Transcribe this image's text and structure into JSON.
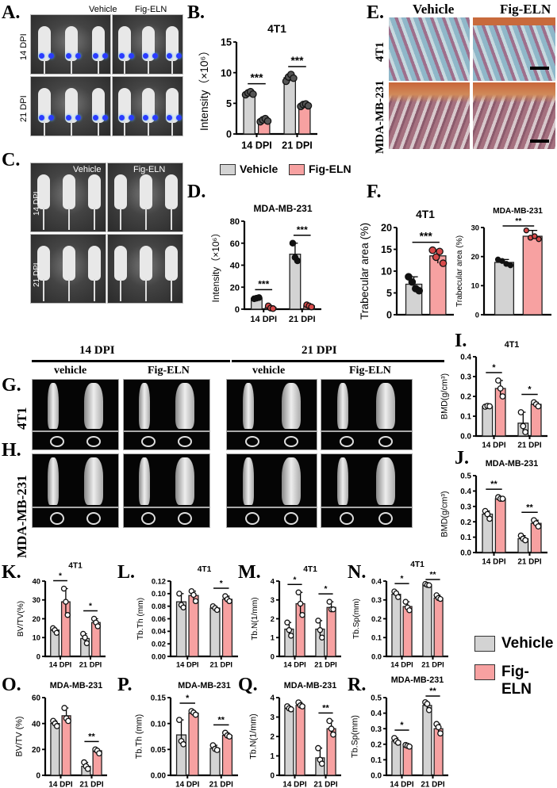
{
  "panel_letters": {
    "A": "A.",
    "B": "B.",
    "C": "C.",
    "D": "D.",
    "E": "E.",
    "F": "F.",
    "G": "G.",
    "H": "H.",
    "I": "I.",
    "J": "J.",
    "K": "K.",
    "L": "L.",
    "M": "M.",
    "N": "N.",
    "O": "O.",
    "P": "P.",
    "Q": "Q.",
    "R": "R."
  },
  "colors": {
    "vehicle": "#d3d3d3",
    "fig_eln": "#f7a1a1",
    "axis": "#000000"
  },
  "legend": {
    "vehicle": "Vehicle",
    "fig_eln": "Fig-ELN"
  },
  "panel_A": {
    "col_headers": [
      "Vehicle",
      "Fig-ELN"
    ],
    "row_labels": [
      "14 DPI",
      "21 DPI"
    ]
  },
  "panel_C": {
    "col_headers": [
      "Vehicle",
      "Fig-ELN"
    ],
    "row_labels": [
      "14 DPI",
      "21 DPI"
    ]
  },
  "panel_E": {
    "col_headers": [
      "Vehicle",
      "Fig-ELN"
    ],
    "row_labels": [
      "4T1",
      "MDA-MB-231"
    ]
  },
  "panel_GH": {
    "timepoints": [
      "14 DPI",
      "21 DPI"
    ],
    "groups": [
      "vehicle",
      "Fig-ELN",
      "vehicle",
      "Fig-ELN"
    ],
    "row_labels": [
      "4T1",
      "MDA-MB-231"
    ]
  },
  "chart_data": [
    {
      "id": "B",
      "type": "bar",
      "title": "4T1",
      "ylabel": "Intensity（×10⁶）",
      "categories": [
        "14 DPI",
        "21 DPI"
      ],
      "ylim": [
        0,
        15
      ],
      "yticks": [
        "0",
        "5",
        "10",
        "15"
      ],
      "point_style": "filled-gray",
      "series": [
        {
          "name": "Vehicle",
          "values": [
            6.6,
            9.2
          ],
          "points": [
            [
              6.4,
              6.7,
              6.9,
              6.5
            ],
            [
              8.6,
              9.3,
              9.7,
              9.1
            ]
          ]
        },
        {
          "name": "Fig-ELN",
          "values": [
            2.2,
            4.7
          ],
          "points": [
            [
              2.0,
              2.3,
              2.5,
              2.1
            ],
            [
              4.5,
              4.8,
              4.9,
              4.6
            ]
          ]
        }
      ],
      "significance": [
        "***",
        "***"
      ]
    },
    {
      "id": "D",
      "type": "bar",
      "title": "MDA-MB-231",
      "ylabel": "Intensity（×10⁶）",
      "categories": [
        "14 DPI",
        "21 DPI"
      ],
      "ylim": [
        0,
        80
      ],
      "yticks": [
        "0",
        "20",
        "40",
        "60",
        "80"
      ],
      "point_style": "filled",
      "series": [
        {
          "name": "Vehicle",
          "values": [
            10,
            50
          ],
          "points": [
            [
              9.5,
              10,
              10.5
            ],
            [
              60,
              47,
              44
            ]
          ]
        },
        {
          "name": "Fig-ELN",
          "values": [
            1.5,
            3
          ],
          "points": [
            [
              3,
              1,
              0.5
            ],
            [
              4,
              3,
              2
            ]
          ]
        }
      ],
      "significance": [
        "***",
        "***"
      ]
    },
    {
      "id": "F1",
      "type": "bar",
      "title": "4T1",
      "ylabel": "Trabecular area (%)",
      "categories": [
        ""
      ],
      "ylim": [
        0,
        20
      ],
      "yticks": [
        "0",
        "5",
        "10",
        "15",
        "20"
      ],
      "point_style": "filled",
      "series": [
        {
          "name": "Vehicle",
          "values": [
            7.0
          ],
          "points": [
            [
              8.7,
              7.5,
              6.0,
              5.5
            ]
          ]
        },
        {
          "name": "Fig-ELN",
          "values": [
            13.5
          ],
          "points": [
            [
              14.8,
              13.2,
              14.5,
              11.8
            ]
          ]
        }
      ],
      "significance": [
        "***"
      ]
    },
    {
      "id": "F2",
      "type": "bar",
      "title": "MDA-MB-231",
      "ylabel": "Trabecular area (%)",
      "categories": [
        ""
      ],
      "ylim": [
        0,
        30
      ],
      "yticks": [
        "0",
        "10",
        "20",
        "30"
      ],
      "point_style": "filled",
      "series": [
        {
          "name": "Vehicle",
          "values": [
            18
          ],
          "points": [
            [
              19,
              18.5,
              17.5,
              17
            ]
          ]
        },
        {
          "name": "Fig-ELN",
          "values": [
            27
          ],
          "points": [
            [
              29,
              26.5,
              27,
              26
            ]
          ]
        }
      ],
      "significance": [
        "**"
      ]
    },
    {
      "id": "I",
      "type": "bar",
      "title": "4T1",
      "ylabel": "BMD(g/cm³)",
      "categories": [
        "14 DPI",
        "21 DPI"
      ],
      "ylim": [
        0,
        0.4
      ],
      "yticks": [
        "0.0",
        "0.1",
        "0.2",
        "0.3",
        "0.4"
      ],
      "point_style": "open",
      "series": [
        {
          "name": "Vehicle",
          "values": [
            0.15,
            0.065
          ],
          "points": [
            [
              0.148,
              0.152,
              0.15
            ],
            [
              0.12,
              0.05,
              0.02
            ]
          ]
        },
        {
          "name": "Fig-ELN",
          "values": [
            0.24,
            0.16
          ],
          "points": [
            [
              0.28,
              0.24,
              0.2
            ],
            [
              0.17,
              0.16,
              0.15
            ]
          ]
        }
      ],
      "significance": [
        "*",
        "*"
      ]
    },
    {
      "id": "J",
      "type": "bar",
      "title": "MDA-MB-231",
      "ylabel": "BMD(g/cm³)",
      "categories": [
        "14 DPI",
        "21 DPI"
      ],
      "ylim": [
        0,
        0.5
      ],
      "yticks": [
        "0.0",
        "0.1",
        "0.2",
        "0.3",
        "0.4",
        "0.5"
      ],
      "point_style": "open",
      "series": [
        {
          "name": "Vehicle",
          "values": [
            0.25,
            0.09
          ],
          "points": [
            [
              0.27,
              0.25,
              0.22
            ],
            [
              0.11,
              0.09,
              0.08
            ]
          ]
        },
        {
          "name": "Fig-ELN",
          "values": [
            0.35,
            0.19
          ],
          "points": [
            [
              0.36,
              0.35,
              0.35
            ],
            [
              0.21,
              0.19,
              0.17
            ]
          ]
        }
      ],
      "significance": [
        "**",
        "**"
      ]
    },
    {
      "id": "K",
      "type": "bar",
      "title": "4T1",
      "ylabel": "BV/TV(%)",
      "categories": [
        "14 DPI",
        "21 DPI"
      ],
      "ylim": [
        0,
        40
      ],
      "yticks": [
        "0",
        "10",
        "20",
        "30",
        "40"
      ],
      "point_style": "open",
      "series": [
        {
          "name": "Vehicle",
          "values": [
            14,
            9.5
          ],
          "points": [
            [
              15,
              14,
              12.5
            ],
            [
              12,
              10,
              7
            ]
          ]
        },
        {
          "name": "Fig-ELN",
          "values": [
            29,
            18
          ],
          "points": [
            [
              36,
              29,
              22
            ],
            [
              20,
              18,
              16
            ]
          ]
        }
      ],
      "significance": [
        "*",
        "*"
      ]
    },
    {
      "id": "L",
      "type": "bar",
      "title": "4T1",
      "ylabel": "Tb.Th (mm)",
      "categories": [
        "14 DPI",
        "21 DPI"
      ],
      "ylim": [
        0,
        0.12
      ],
      "yticks": [
        "0.00",
        "0.02",
        "0.04",
        "0.06",
        "0.08",
        "0.10",
        "0.12"
      ],
      "point_style": "open",
      "series": [
        {
          "name": "Vehicle",
          "values": [
            0.087,
            0.077
          ],
          "points": [
            [
              0.1,
              0.082,
              0.078
            ],
            [
              0.08,
              0.077,
              0.074
            ]
          ]
        },
        {
          "name": "Fig-ELN",
          "values": [
            0.097,
            0.091
          ],
          "points": [
            [
              0.104,
              0.098,
              0.088
            ],
            [
              0.096,
              0.091,
              0.088
            ]
          ]
        }
      ],
      "significance": [
        "",
        "*"
      ]
    },
    {
      "id": "M",
      "type": "bar",
      "title": "4T1",
      "ylabel": "Tb.N(1/mm)",
      "categories": [
        "14 DPI",
        "21 DPI"
      ],
      "ylim": [
        0,
        4
      ],
      "yticks": [
        "0",
        "1",
        "2",
        "3",
        "4"
      ],
      "point_style": "open",
      "series": [
        {
          "name": "Vehicle",
          "values": [
            1.45,
            1.45
          ],
          "points": [
            [
              1.8,
              1.4,
              1.1
            ],
            [
              1.9,
              1.4,
              1.0
            ]
          ]
        },
        {
          "name": "Fig-ELN",
          "values": [
            2.8,
            2.6
          ],
          "points": [
            [
              3.4,
              2.8,
              2.2
            ],
            [
              2.9,
              2.5,
              2.5
            ]
          ]
        }
      ],
      "significance": [
        "*",
        "*"
      ]
    },
    {
      "id": "N",
      "type": "bar",
      "title": "4T1",
      "ylabel": "Tb.Sp(mm)",
      "categories": [
        "14 DPI",
        "21 DPI"
      ],
      "ylim": [
        0,
        0.4
      ],
      "yticks": [
        "0.0",
        "0.1",
        "0.2",
        "0.3",
        "0.4"
      ],
      "point_style": "open",
      "series": [
        {
          "name": "Vehicle",
          "values": [
            0.33,
            0.38
          ],
          "points": [
            [
              0.345,
              0.335,
              0.315
            ],
            [
              0.385,
              0.38,
              0.378
            ]
          ]
        },
        {
          "name": "Fig-ELN",
          "values": [
            0.265,
            0.31
          ],
          "points": [
            [
              0.29,
              0.26,
              0.245
            ],
            [
              0.325,
              0.31,
              0.305
            ]
          ]
        }
      ],
      "significance": [
        "*",
        "**"
      ]
    },
    {
      "id": "O",
      "type": "bar",
      "title": "MDA-MB-231",
      "ylabel": "BV/TV (%)",
      "categories": [
        "14 DPI",
        "21 DPI"
      ],
      "ylim": [
        0,
        60
      ],
      "yticks": [
        "0",
        "20",
        "40",
        "60"
      ],
      "point_style": "open",
      "series": [
        {
          "name": "Vehicle",
          "values": [
            40,
            7
          ],
          "points": [
            [
              42,
              40,
              38
            ],
            [
              10,
              7,
              5
            ]
          ]
        },
        {
          "name": "Fig-ELN",
          "values": [
            46,
            19
          ],
          "points": [
            [
              52,
              44,
              42
            ],
            [
              20,
              19,
              17
            ]
          ]
        }
      ],
      "significance": [
        "",
        "**"
      ]
    },
    {
      "id": "P",
      "type": "bar",
      "title": "MDA-MB-231",
      "ylabel": "Tb.Th (mm)",
      "categories": [
        "14 DPI",
        "21 DPI"
      ],
      "ylim": [
        0,
        0.15
      ],
      "yticks": [
        "0.00",
        "0.05",
        "0.10",
        "0.15"
      ],
      "point_style": "open",
      "series": [
        {
          "name": "Vehicle",
          "values": [
            0.078,
            0.052
          ],
          "points": [
            [
              0.107,
              0.066,
              0.06
            ],
            [
              0.058,
              0.051,
              0.049
            ]
          ]
        },
        {
          "name": "Fig-ELN",
          "values": [
            0.12,
            0.077
          ],
          "points": [
            [
              0.124,
              0.121,
              0.117
            ],
            [
              0.082,
              0.077,
              0.075
            ]
          ]
        }
      ],
      "significance": [
        "*",
        "**"
      ]
    },
    {
      "id": "Q",
      "type": "bar",
      "title": "MDA-MB-231",
      "ylabel": "Tb.N(1/mm)",
      "categories": [
        "14 DPI",
        "21 DPI"
      ],
      "ylim": [
        0,
        4
      ],
      "yticks": [
        "0",
        "1",
        "2",
        "3",
        "4"
      ],
      "point_style": "open",
      "series": [
        {
          "name": "Vehicle",
          "values": [
            3.45,
            0.9
          ],
          "points": [
            [
              3.55,
              3.45,
              3.4
            ],
            [
              1.4,
              0.8,
              0.6
            ]
          ]
        },
        {
          "name": "Fig-ELN",
          "values": [
            3.6,
            2.4
          ],
          "points": [
            [
              3.75,
              3.6,
              3.55
            ],
            [
              2.8,
              2.4,
              2.1
            ]
          ]
        }
      ],
      "significance": [
        "",
        "**"
      ]
    },
    {
      "id": "R",
      "type": "bar",
      "title": "MDA-MB-231",
      "ylabel": "Tb.Sp(mm)",
      "categories": [
        "14 DPI",
        "21 DPI"
      ],
      "ylim": [
        0,
        0.5
      ],
      "yticks": [
        "0.0",
        "0.1",
        "0.2",
        "0.3",
        "0.4",
        "0.5"
      ],
      "point_style": "open",
      "series": [
        {
          "name": "Vehicle",
          "values": [
            0.22,
            0.45
          ],
          "points": [
            [
              0.24,
              0.22,
              0.21
            ],
            [
              0.47,
              0.46,
              0.42
            ]
          ]
        },
        {
          "name": "Fig-ELN",
          "values": [
            0.19,
            0.3
          ],
          "points": [
            [
              0.195,
              0.19,
              0.185
            ],
            [
              0.33,
              0.31,
              0.27
            ]
          ]
        }
      ],
      "significance": [
        "*",
        "**"
      ]
    }
  ]
}
